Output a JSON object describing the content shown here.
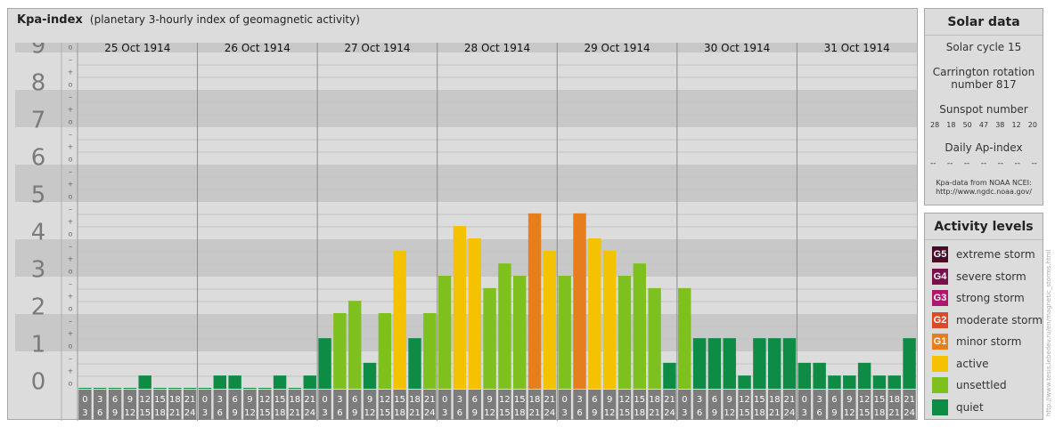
{
  "header": {
    "title": "Kpa-index",
    "subtitle": "(planetary 3-hourly index of geomagnetic activity)"
  },
  "solar": {
    "title": "Solar data",
    "cycle": "Solar cycle 15",
    "carrington_line1": "Carrington rotation",
    "carrington_line2": "number 817",
    "sunspot_title": "Sunspot number",
    "sunspot_values": [
      "28",
      "18",
      "50",
      "47",
      "38",
      "12",
      "20"
    ],
    "ap_title": "Daily Ap-index",
    "ap_values": [
      "--",
      "--",
      "--",
      "--",
      "--",
      "--",
      "--"
    ],
    "source_line1": "Kpa-data from NOAA NCEI:",
    "source_line2": "http://www.ngdc.noaa.gov/"
  },
  "levels": {
    "title": "Activity levels",
    "items": [
      {
        "code": "G5",
        "label": "extreme storm",
        "color": "#4a0a2a"
      },
      {
        "code": "G4",
        "label": "severe storm",
        "color": "#7a0f4e"
      },
      {
        "code": "G3",
        "label": "strong storm",
        "color": "#b01570"
      },
      {
        "code": "G2",
        "label": "moderate storm",
        "color": "#d9492a"
      },
      {
        "code": "G1",
        "label": "minor storm",
        "color": "#e67e1e"
      },
      {
        "code": "",
        "label": "active",
        "color": "#f5c200"
      },
      {
        "code": "",
        "label": "unsettled",
        "color": "#7ec11f"
      },
      {
        "code": "",
        "label": "quiet",
        "color": "#0e8c45"
      }
    ]
  },
  "watermark": "http://www.tesis.lebedev.ru/en/magnetic_storms.html",
  "chart_data": {
    "type": "bar",
    "y_axis_labels": [
      "0",
      "1",
      "2",
      "3",
      "4",
      "5",
      "6",
      "7",
      "8",
      "9"
    ],
    "minor_labels": [
      "o",
      "+",
      "–"
    ],
    "ylim": [
      0,
      9.33
    ],
    "days": [
      "25 Oct 1914",
      "26 Oct 1914",
      "27 Oct 1914",
      "28 Oct 1914",
      "29 Oct 1914",
      "30 Oct 1914",
      "31 Oct 1914"
    ],
    "interval_labels": [
      [
        "0",
        "3"
      ],
      [
        "3",
        "6"
      ],
      [
        "6",
        "9"
      ],
      [
        "9",
        "12"
      ],
      [
        "12",
        "15"
      ],
      [
        "15",
        "18"
      ],
      [
        "18",
        "21"
      ],
      [
        "21",
        "24"
      ]
    ],
    "values": [
      [
        0,
        0,
        0,
        0,
        0.33,
        0,
        0,
        0
      ],
      [
        0,
        0.33,
        0.33,
        0,
        0,
        0.33,
        0,
        0.33
      ],
      [
        1.33,
        2,
        2.33,
        0.67,
        2,
        3.67,
        1.33,
        2
      ],
      [
        3,
        4.33,
        4,
        2.67,
        3.33,
        3,
        4.67,
        3.67
      ],
      [
        3,
        4.67,
        4,
        3.67,
        3,
        3.33,
        2.67,
        0.67
      ],
      [
        2.67,
        1.33,
        1.33,
        1.33,
        0.33,
        1.33,
        1.33,
        1.33
      ],
      [
        0.67,
        0.67,
        0.33,
        0.33,
        0.67,
        0.33,
        0.33,
        1.33
      ]
    ],
    "colors": {
      "quiet": "#0e8c45",
      "unsettled": "#7ec11f",
      "active": "#f5c200",
      "minor_storm": "#e67e1e",
      "band_dark": "#c8c8c8",
      "band_light": "#dcdcdc",
      "axis_digit": "#7a7a7a",
      "interval_box": "#7c7c7c"
    }
  }
}
